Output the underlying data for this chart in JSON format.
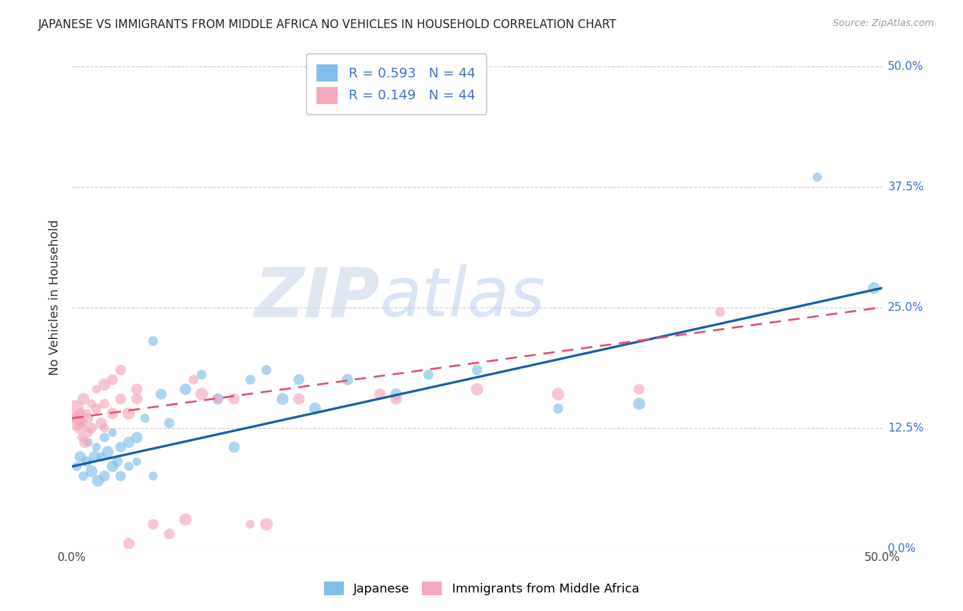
{
  "title": "JAPANESE VS IMMIGRANTS FROM MIDDLE AFRICA NO VEHICLES IN HOUSEHOLD CORRELATION CHART",
  "source": "Source: ZipAtlas.com",
  "ylabel": "No Vehicles in Household",
  "ytick_values": [
    0.0,
    12.5,
    25.0,
    37.5,
    50.0
  ],
  "xlim": [
    0.0,
    50.0
  ],
  "ylim": [
    0.0,
    52.0
  ],
  "watermark_zip": "ZIP",
  "watermark_atlas": "atlas",
  "blue_color": "#7fbfea",
  "pink_color": "#f5a8bc",
  "blue_line_color": "#1a5fa8",
  "pink_line_color": "#e05070",
  "ytick_color": "#4472c4",
  "blue_scatter": [
    [
      0.3,
      8.5
    ],
    [
      0.5,
      9.5
    ],
    [
      0.7,
      7.5
    ],
    [
      0.9,
      9.0
    ],
    [
      1.0,
      11.0
    ],
    [
      1.2,
      8.0
    ],
    [
      1.4,
      9.5
    ],
    [
      1.5,
      10.5
    ],
    [
      1.6,
      7.0
    ],
    [
      1.8,
      9.5
    ],
    [
      2.0,
      11.5
    ],
    [
      2.0,
      7.5
    ],
    [
      2.2,
      10.0
    ],
    [
      2.5,
      8.5
    ],
    [
      2.5,
      12.0
    ],
    [
      2.8,
      9.0
    ],
    [
      3.0,
      10.5
    ],
    [
      3.0,
      7.5
    ],
    [
      3.5,
      11.0
    ],
    [
      3.5,
      8.5
    ],
    [
      4.0,
      11.5
    ],
    [
      4.0,
      9.0
    ],
    [
      4.5,
      13.5
    ],
    [
      5.0,
      7.5
    ],
    [
      5.0,
      21.5
    ],
    [
      5.5,
      16.0
    ],
    [
      6.0,
      13.0
    ],
    [
      7.0,
      16.5
    ],
    [
      8.0,
      18.0
    ],
    [
      9.0,
      15.5
    ],
    [
      10.0,
      10.5
    ],
    [
      11.0,
      17.5
    ],
    [
      12.0,
      18.5
    ],
    [
      13.0,
      15.5
    ],
    [
      14.0,
      17.5
    ],
    [
      15.0,
      14.5
    ],
    [
      17.0,
      17.5
    ],
    [
      20.0,
      16.0
    ],
    [
      22.0,
      18.0
    ],
    [
      25.0,
      18.5
    ],
    [
      30.0,
      14.5
    ],
    [
      35.0,
      15.0
    ],
    [
      46.0,
      38.5
    ],
    [
      49.5,
      27.0
    ]
  ],
  "pink_scatter": [
    [
      0.2,
      14.5
    ],
    [
      0.3,
      13.0
    ],
    [
      0.4,
      13.5
    ],
    [
      0.5,
      12.5
    ],
    [
      0.5,
      14.0
    ],
    [
      0.6,
      11.5
    ],
    [
      0.7,
      13.0
    ],
    [
      0.7,
      15.5
    ],
    [
      0.8,
      11.0
    ],
    [
      0.9,
      14.0
    ],
    [
      1.0,
      13.5
    ],
    [
      1.0,
      12.0
    ],
    [
      1.2,
      15.0
    ],
    [
      1.2,
      12.5
    ],
    [
      1.5,
      14.5
    ],
    [
      1.5,
      16.5
    ],
    [
      1.8,
      13.0
    ],
    [
      2.0,
      17.0
    ],
    [
      2.0,
      12.5
    ],
    [
      2.0,
      15.0
    ],
    [
      2.5,
      14.0
    ],
    [
      2.5,
      17.5
    ],
    [
      3.0,
      15.5
    ],
    [
      3.0,
      18.5
    ],
    [
      3.5,
      14.0
    ],
    [
      4.0,
      15.5
    ],
    [
      4.0,
      16.5
    ],
    [
      5.0,
      2.5
    ],
    [
      6.0,
      1.5
    ],
    [
      7.0,
      3.0
    ],
    [
      7.5,
      17.5
    ],
    [
      8.0,
      16.0
    ],
    [
      9.0,
      15.5
    ],
    [
      10.0,
      15.5
    ],
    [
      11.0,
      2.5
    ],
    [
      14.0,
      15.5
    ],
    [
      20.0,
      15.5
    ],
    [
      25.0,
      16.5
    ],
    [
      30.0,
      16.0
    ],
    [
      35.0,
      16.5
    ],
    [
      3.5,
      0.5
    ],
    [
      12.0,
      2.5
    ],
    [
      19.0,
      16.0
    ],
    [
      40.0,
      24.5
    ]
  ],
  "blue_line_x0": 0.0,
  "blue_line_y0": 8.5,
  "blue_line_x1": 50.0,
  "blue_line_y1": 27.0,
  "pink_line_x0": 0.0,
  "pink_line_y0": 13.5,
  "pink_line_x1": 50.0,
  "pink_line_y1": 25.0
}
